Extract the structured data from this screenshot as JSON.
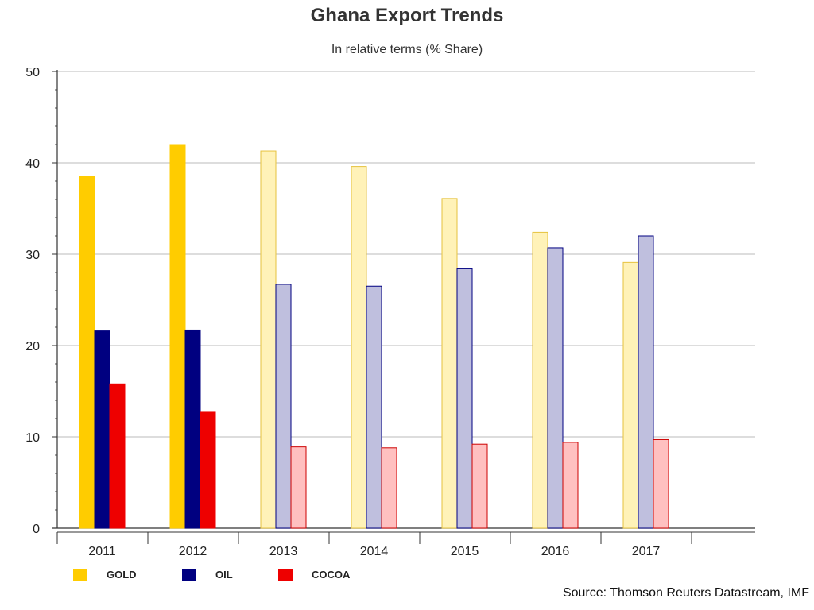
{
  "chart_data": {
    "type": "bar",
    "title": "Ghana Export Trends",
    "subtitle": "In relative terms (% Share)",
    "categories": [
      "2011",
      "2012",
      "2013",
      "2014",
      "2015",
      "2016",
      "2017"
    ],
    "ylim": [
      0,
      50
    ],
    "yticks": [
      0,
      10,
      20,
      30,
      40,
      50
    ],
    "grid": true,
    "legend_position": "bottom-left",
    "series": [
      {
        "name": "GOLD",
        "values": [
          38.5,
          42.0,
          41.3,
          39.6,
          36.1,
          32.4,
          29.1
        ],
        "color": "#FFCC00",
        "forecast_fill": "#FFF2B8",
        "forecast_stroke": "#E6C23E"
      },
      {
        "name": "OIL",
        "values": [
          21.6,
          21.7,
          26.7,
          26.5,
          28.4,
          30.7,
          32.0
        ],
        "color": "#000080",
        "forecast_fill": "#BFBFDE",
        "forecast_stroke": "#000080"
      },
      {
        "name": "COCOA",
        "values": [
          15.8,
          12.7,
          8.9,
          8.8,
          9.2,
          9.4,
          9.7
        ],
        "color": "#EE0000",
        "forecast_fill": "#FFC0C0",
        "forecast_stroke": "#CC0000"
      }
    ],
    "solid_years": [
      "2011",
      "2012"
    ],
    "source": "Source: Thomson Reuters Datastream, IMF"
  }
}
